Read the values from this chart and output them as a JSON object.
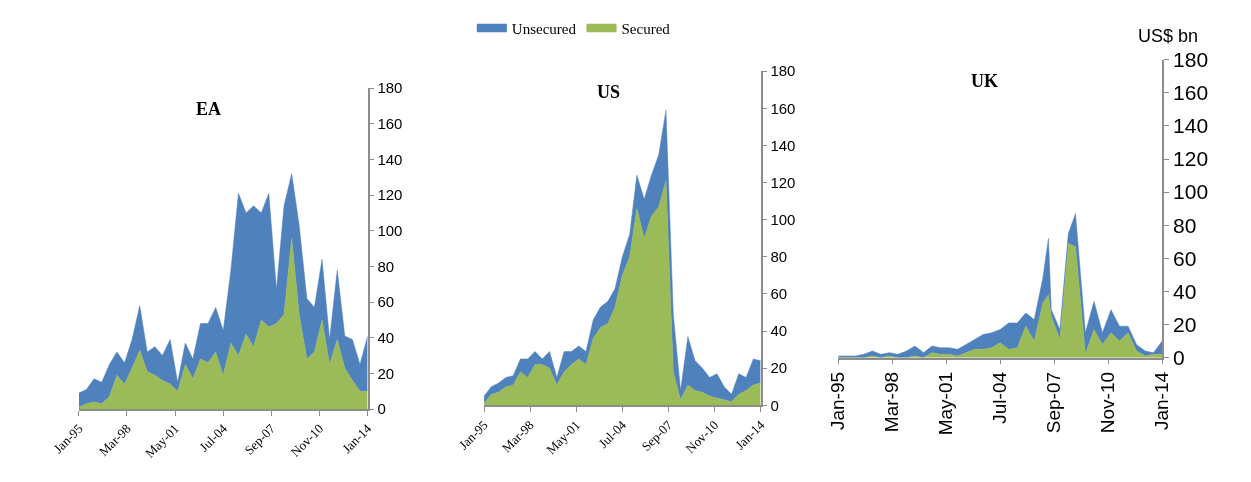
{
  "chart_data": [
    {
      "type": "area",
      "title": "EA",
      "stacked": true,
      "legend": "top",
      "x": [
        "1995-01",
        "1995-07",
        "1996-01",
        "1996-07",
        "1997-01",
        "1997-07",
        "1998-01",
        "1998-07",
        "1999-01",
        "1999-07",
        "2000-01",
        "2000-07",
        "2001-01",
        "2001-07",
        "2002-01",
        "2002-07",
        "2003-01",
        "2003-07",
        "2004-01",
        "2004-07",
        "2005-01",
        "2005-07",
        "2006-01",
        "2006-07",
        "2007-01",
        "2007-07",
        "2008-01",
        "2008-07",
        "2009-01",
        "2009-07",
        "2010-01",
        "2010-07",
        "2011-01",
        "2011-07",
        "2012-01",
        "2012-07",
        "2013-01",
        "2013-07",
        "2014-01"
      ],
      "series": [
        {
          "name": "Secured",
          "color": "#9bbb59",
          "values": [
            1,
            3,
            4,
            3,
            7,
            19,
            14,
            23,
            33,
            21,
            19,
            16,
            14,
            10,
            25,
            17,
            28,
            26,
            32,
            19,
            37,
            30,
            42,
            35,
            50,
            46,
            48,
            53,
            96,
            53,
            28,
            32,
            50,
            25,
            39,
            23,
            16,
            10,
            10
          ]
        },
        {
          "name": "Unsecured",
          "color": "#4f81bd",
          "values": [
            8,
            8,
            13,
            12,
            18,
            13,
            12,
            16,
            25,
            11,
            16,
            14,
            25,
            5,
            12,
            11,
            20,
            22,
            25,
            25,
            41,
            91,
            68,
            79,
            60,
            75,
            19,
            61,
            36,
            50,
            34,
            25,
            34,
            14,
            39,
            18,
            23,
            15,
            31
          ]
        }
      ],
      "xlim": [
        "1995-01",
        "2014-01"
      ],
      "xticks": [
        {
          "value": "1995-01",
          "label": "Jan-95"
        },
        {
          "value": "1998-03",
          "label": "Mar-98"
        },
        {
          "value": "2001-05",
          "label": "May-01"
        },
        {
          "value": "2004-07",
          "label": "Jul-04"
        },
        {
          "value": "2007-09",
          "label": "Sep-07"
        },
        {
          "value": "2010-11",
          "label": "Nov-10"
        },
        {
          "value": "2014-01",
          "label": "Jan-14"
        }
      ],
      "ylim": [
        0,
        180
      ],
      "yticks": [
        0,
        20,
        40,
        60,
        80,
        100,
        120,
        140,
        160,
        180
      ]
    },
    {
      "type": "area",
      "title": "US",
      "stacked": true,
      "x": [
        "1995-01",
        "1995-07",
        "1996-01",
        "1996-07",
        "1997-01",
        "1997-07",
        "1998-01",
        "1998-07",
        "1999-01",
        "1999-07",
        "2000-01",
        "2000-07",
        "2001-01",
        "2001-07",
        "2002-01",
        "2002-07",
        "2003-01",
        "2003-07",
        "2004-01",
        "2004-07",
        "2005-01",
        "2005-07",
        "2006-01",
        "2006-07",
        "2007-01",
        "2007-07",
        "2008-01",
        "2008-07",
        "2009-01",
        "2009-07",
        "2010-01",
        "2010-07",
        "2011-01",
        "2011-07",
        "2012-01",
        "2012-07",
        "2013-01",
        "2013-07",
        "2014-01"
      ],
      "series": [
        {
          "color": "#9bbb59",
          "values": [
            1,
            6,
            7,
            10,
            11,
            18,
            15,
            22,
            22,
            20,
            11,
            18,
            22,
            25,
            22,
            36,
            42,
            44,
            53,
            70,
            80,
            106,
            90,
            102,
            107,
            121,
            18,
            3,
            11,
            8,
            7,
            5,
            4,
            3,
            2,
            6,
            8,
            11,
            12
          ]
        },
        {
          "color": "#4f81bd",
          "values": [
            4,
            4,
            5,
            5,
            5,
            7,
            10,
            7,
            3,
            9,
            4,
            11,
            7,
            7,
            7,
            10,
            11,
            12,
            10,
            10,
            12,
            18,
            21,
            22,
            28,
            38,
            31,
            5,
            26,
            16,
            13,
            10,
            13,
            7,
            4,
            11,
            7,
            14,
            12
          ]
        }
      ],
      "xlim": [
        "1995-01",
        "2014-01"
      ],
      "xticks": [
        {
          "value": "1995-01",
          "label": "Jan-95"
        },
        {
          "value": "1998-03",
          "label": "Mar-98"
        },
        {
          "value": "2001-05",
          "label": "May-01"
        },
        {
          "value": "2004-07",
          "label": "Jul-04"
        },
        {
          "value": "2007-09",
          "label": "Sep-07"
        },
        {
          "value": "2010-11",
          "label": "Nov-10"
        },
        {
          "value": "2014-01",
          "label": "Jan-14"
        }
      ],
      "ylim": [
        0,
        180
      ],
      "yticks": [
        0,
        20,
        40,
        60,
        80,
        100,
        120,
        140,
        160,
        180
      ]
    },
    {
      "type": "area",
      "title": "UK",
      "ylabel": "US$ bn",
      "stacked": true,
      "x": [
        "1995-01",
        "1995-07",
        "1996-01",
        "1996-07",
        "1997-01",
        "1997-07",
        "1998-01",
        "1998-07",
        "1999-01",
        "1999-07",
        "2000-01",
        "2000-07",
        "2001-01",
        "2001-07",
        "2002-01",
        "2002-07",
        "2003-01",
        "2003-07",
        "2004-01",
        "2004-07",
        "2005-01",
        "2005-07",
        "2006-01",
        "2006-07",
        "2007-01",
        "2007-05",
        "2007-07",
        "2008-01",
        "2008-07",
        "2008-12",
        "2009-07",
        "2010-01",
        "2010-07",
        "2011-01",
        "2011-07",
        "2012-01",
        "2012-07",
        "2013-01",
        "2013-07",
        "2014-01"
      ],
      "series": [
        {
          "color": "#9bbb59",
          "values": [
            0,
            0,
            0,
            0,
            1,
            0,
            1,
            0,
            0,
            1,
            0,
            3,
            2,
            2,
            1,
            3,
            5,
            5,
            6,
            9,
            5,
            6,
            19,
            10,
            33,
            38,
            25,
            11,
            69,
            67,
            2,
            17,
            8,
            15,
            10,
            15,
            4,
            1,
            2,
            2
          ]
        },
        {
          "color": "#4f81bd",
          "values": [
            1,
            1,
            1,
            2,
            3,
            2,
            2,
            2,
            4,
            6,
            3,
            4,
            4,
            4,
            4,
            5,
            6,
            9,
            9,
            8,
            16,
            15,
            8,
            13,
            15,
            34,
            4,
            6,
            6,
            20,
            13,
            17,
            7,
            14,
            9,
            4,
            4,
            3,
            1,
            8
          ]
        }
      ],
      "xlim": [
        "1995-01",
        "2014-01"
      ],
      "xticks": [
        {
          "value": "1995-01",
          "label": "Jan-95"
        },
        {
          "value": "1998-03",
          "label": "Mar-98"
        },
        {
          "value": "2001-05",
          "label": "May-01"
        },
        {
          "value": "2004-07",
          "label": "Jul-04"
        },
        {
          "value": "2007-09",
          "label": "Sep-07"
        },
        {
          "value": "2010-11",
          "label": "Nov-10"
        },
        {
          "value": "2014-01",
          "label": "Jan-14"
        }
      ],
      "ylim": [
        0,
        180
      ],
      "yticks": [
        0,
        20,
        40,
        60,
        80,
        100,
        120,
        140,
        160,
        180
      ]
    }
  ]
}
